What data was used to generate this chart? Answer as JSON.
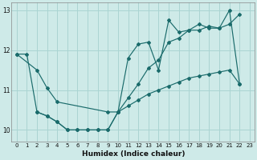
{
  "background_color": "#ceeae8",
  "grid_color": "#aad4d2",
  "line_color": "#1a6b6b",
  "xlabel": "Humidex (Indice chaleur)",
  "ylim": [
    9.7,
    13.2
  ],
  "xlim": [
    -0.5,
    23.5
  ],
  "yticks": [
    10,
    11,
    12,
    13
  ],
  "xticks": [
    0,
    1,
    2,
    3,
    4,
    5,
    6,
    7,
    8,
    9,
    10,
    11,
    12,
    13,
    14,
    15,
    16,
    17,
    18,
    19,
    20,
    21,
    22,
    23
  ],
  "series1_x": [
    0,
    1,
    2,
    3,
    4,
    5,
    6,
    7,
    8,
    9,
    10,
    11,
    12,
    13,
    14,
    15,
    16,
    17,
    18,
    19,
    20,
    21,
    22
  ],
  "series1_y": [
    11.9,
    11.9,
    10.45,
    10.35,
    10.2,
    10.0,
    10.0,
    10.0,
    10.0,
    10.0,
    10.45,
    10.8,
    11.15,
    11.55,
    11.75,
    12.2,
    12.3,
    12.5,
    12.5,
    12.6,
    12.55,
    12.65,
    12.9
  ],
  "series2_x": [
    0,
    2,
    3,
    4,
    9,
    10,
    11,
    12,
    13,
    14,
    15,
    16,
    17,
    18,
    19,
    20,
    21,
    22
  ],
  "series2_y": [
    11.9,
    11.5,
    11.05,
    10.7,
    10.45,
    10.45,
    11.8,
    12.15,
    12.2,
    11.5,
    12.75,
    12.45,
    12.5,
    12.65,
    12.55,
    12.55,
    13.0,
    11.15
  ],
  "series3_x": [
    2,
    3,
    4,
    5,
    6,
    7,
    8,
    9,
    10,
    11,
    12,
    13,
    14,
    15,
    16,
    17,
    18,
    19,
    20,
    21,
    22
  ],
  "series3_y": [
    10.45,
    10.35,
    10.2,
    10.0,
    10.0,
    10.0,
    10.0,
    10.0,
    10.45,
    10.6,
    10.75,
    10.9,
    11.0,
    11.1,
    11.2,
    11.3,
    11.35,
    11.4,
    11.45,
    11.5,
    11.15
  ]
}
